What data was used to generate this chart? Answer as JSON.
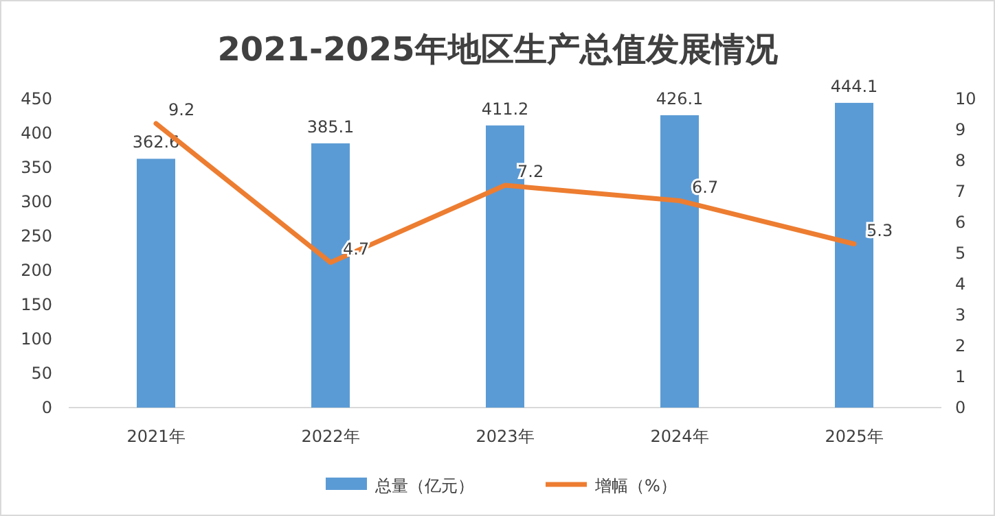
{
  "chart_data": {
    "type": "bar",
    "title": "2021-2025年地区生产总值发展情况",
    "categories": [
      "2021年",
      "2022年",
      "2023年",
      "2024年",
      "2025年"
    ],
    "series": [
      {
        "name": "总量（亿元）",
        "color": "#5b9bd5",
        "values": [
          362.6,
          385.1,
          411.2,
          426.1,
          444.1
        ]
      },
      {
        "name": "增幅（%）",
        "type": "line",
        "axis": "y2",
        "color": "#ed7d31",
        "values": [
          9.2,
          4.7,
          7.2,
          6.7,
          5.3
        ]
      }
    ],
    "ylim": [
      0,
      450
    ],
    "yticks": [
      0,
      50,
      100,
      150,
      200,
      250,
      300,
      350,
      400,
      450
    ],
    "y2lim": [
      0,
      10
    ],
    "y2ticks": [
      0,
      1,
      2,
      3,
      4,
      5,
      6,
      7,
      8,
      9,
      10
    ],
    "data_labels": true,
    "legend": "bottom",
    "grid": false,
    "marker": "none",
    "line_style": "solid"
  }
}
